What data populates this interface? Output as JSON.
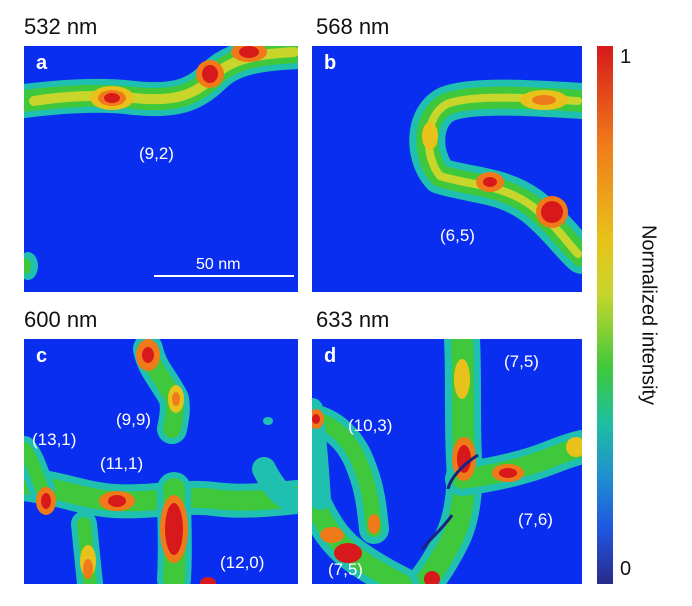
{
  "panels": [
    {
      "wavelength": "532 nm",
      "letter": "a",
      "labels": [
        "(9,2)"
      ]
    },
    {
      "wavelength": "568 nm",
      "letter": "b",
      "labels": [
        "(6,5)"
      ]
    },
    {
      "wavelength": "600 nm",
      "letter": "c",
      "labels": [
        "(9,9)",
        "(13,1)",
        "(11,1)",
        "(12,0)"
      ]
    },
    {
      "wavelength": "633 nm",
      "letter": "d",
      "labels": [
        "(7,5)",
        "(10,3)",
        "(7,6)",
        "(7,5)"
      ]
    }
  ],
  "scalebar": {
    "label": "50 nm"
  },
  "colorbar": {
    "title": "Normalized intensity",
    "max": "1",
    "min": "0"
  },
  "colors": {
    "background": "#0a2ef0",
    "high": "#d7191c",
    "mid": "#e8c21a",
    "low": "#3fc83c"
  }
}
